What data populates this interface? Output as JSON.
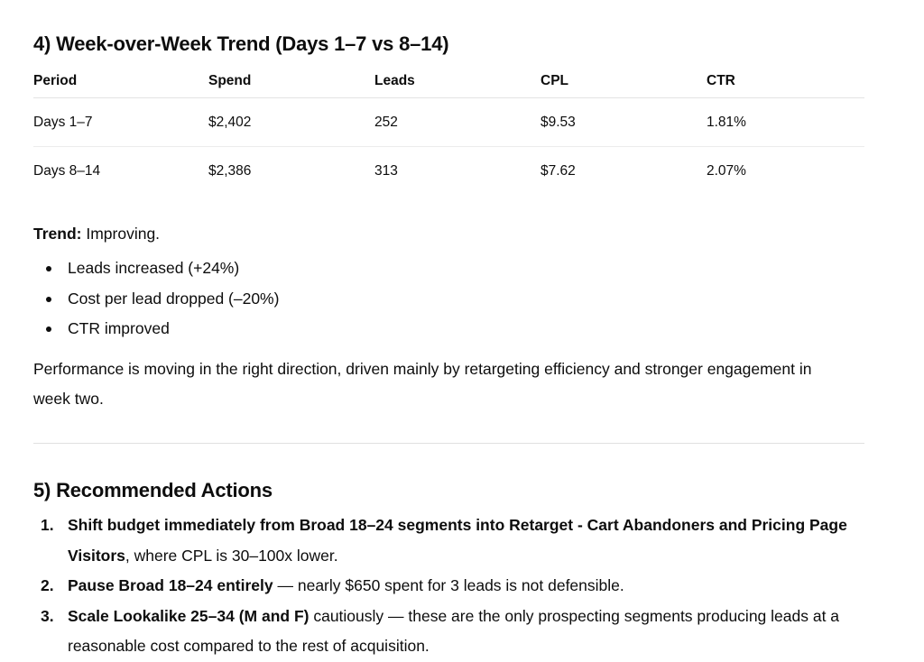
{
  "section4": {
    "heading": "4) Week-over-Week Trend (Days 1–7 vs 8–14)",
    "table": {
      "headers": [
        "Period",
        "Spend",
        "Leads",
        "CPL",
        "CTR"
      ],
      "rows": [
        [
          "Days 1–7",
          "$2,402",
          "252",
          "$9.53",
          "1.81%"
        ],
        [
          "Days 8–14",
          "$2,386",
          "313",
          "$7.62",
          "2.07%"
        ]
      ]
    },
    "trend_label": "Trend:",
    "trend_value": " Improving.",
    "bullets": [
      "Leads increased (+24%)",
      "Cost per lead dropped (–20%)",
      "CTR improved"
    ],
    "summary": "Performance is moving in the right direction, driven mainly by retargeting efficiency and stronger engagement in week two."
  },
  "section5": {
    "heading": "5) Recommended Actions",
    "actions": [
      {
        "number": "1.",
        "bold": "Shift budget immediately from Broad 18–24 segments into Retarget - Cart Abandoners and Pricing Page Visitors",
        "rest": ", where CPL is 30–100x lower."
      },
      {
        "number": "2.",
        "bold": "Pause Broad 18–24 entirely",
        "rest": " — nearly $650 spent for 3 leads is not defensible."
      },
      {
        "number": "3.",
        "bold": "Scale Lookalike 25–34 (M and F)",
        "rest": " cautiously — these are the only prospecting segments producing leads at a reasonable cost compared to the rest of acquisition."
      }
    ]
  }
}
